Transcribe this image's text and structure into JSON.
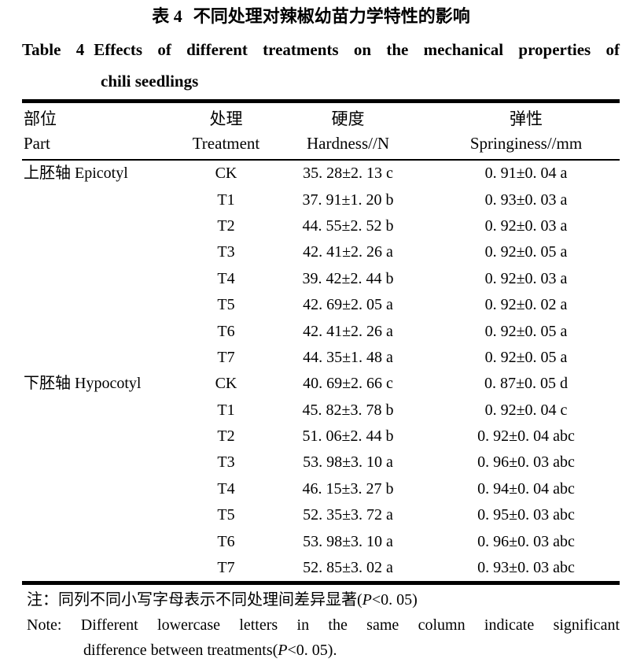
{
  "colors": {
    "text": "#000000",
    "background": "#ffffff",
    "rule": "#000000"
  },
  "title": {
    "cn_label": "表 4",
    "cn_text": "不同处理对辣椒幼苗力学特性的影响",
    "en_label": "Table 4",
    "en_line1": "Effects of different treatments on the mechanical properties of",
    "en_line2": "chili seedlings"
  },
  "table": {
    "columns": [
      {
        "cn": "部位",
        "en": "Part"
      },
      {
        "cn": "处理",
        "en": "Treatment"
      },
      {
        "cn": "硬度",
        "en": "Hardness//N"
      },
      {
        "cn": "弹性",
        "en": "Springiness//mm"
      }
    ],
    "groups": [
      {
        "part": "上胚轴 Epicotyl",
        "rows": [
          {
            "treatment": "CK",
            "hardness": "35. 28±2. 13 c",
            "springiness": "0. 91±0. 04 a"
          },
          {
            "treatment": "T1",
            "hardness": "37. 91±1. 20 b",
            "springiness": "0. 93±0. 03 a"
          },
          {
            "treatment": "T2",
            "hardness": "44. 55±2. 52 b",
            "springiness": "0. 92±0. 03 a"
          },
          {
            "treatment": "T3",
            "hardness": "42. 41±2. 26 a",
            "springiness": "0. 92±0. 05 a"
          },
          {
            "treatment": "T4",
            "hardness": "39. 42±2. 44 b",
            "springiness": "0. 92±0. 03 a"
          },
          {
            "treatment": "T5",
            "hardness": "42. 69±2. 05 a",
            "springiness": "0. 92±0. 02 a"
          },
          {
            "treatment": "T6",
            "hardness": "42. 41±2. 26 a",
            "springiness": "0. 92±0. 05 a"
          },
          {
            "treatment": "T7",
            "hardness": "44. 35±1. 48 a",
            "springiness": "0. 92±0. 05 a"
          }
        ]
      },
      {
        "part": "下胚轴 Hypocotyl",
        "rows": [
          {
            "treatment": "CK",
            "hardness": "40. 69±2. 66 c",
            "springiness": "0. 87±0. 05 d"
          },
          {
            "treatment": "T1",
            "hardness": "45. 82±3. 78 b",
            "springiness": "0. 92±0. 04 c"
          },
          {
            "treatment": "T2",
            "hardness": "51. 06±2. 44 b",
            "springiness": "0. 92±0. 04 abc"
          },
          {
            "treatment": "T3",
            "hardness": "53. 98±3. 10 a",
            "springiness": "0. 96±0. 03 abc"
          },
          {
            "treatment": "T4",
            "hardness": "46. 15±3. 27 b",
            "springiness": "0. 94±0. 04 abc"
          },
          {
            "treatment": "T5",
            "hardness": "52. 35±3. 72 a",
            "springiness": "0. 95±0. 03 abc"
          },
          {
            "treatment": "T6",
            "hardness": "53. 98±3. 10 a",
            "springiness": "0. 96±0. 03 abc"
          },
          {
            "treatment": "T7",
            "hardness": "52. 85±3. 02 a",
            "springiness": "0. 93±0. 03 abc"
          }
        ]
      }
    ]
  },
  "footnote": {
    "cn_pre": "注：同列不同小写字母表示不同处理间差异显著(",
    "cn_p": "P",
    "cn_post": "<0. 05)",
    "en_line1": "Note: Different lowercase letters in the same column indicate significant",
    "en2_pre": "difference between treatments(",
    "en2_p": "P",
    "en2_post": "<0. 05)."
  }
}
